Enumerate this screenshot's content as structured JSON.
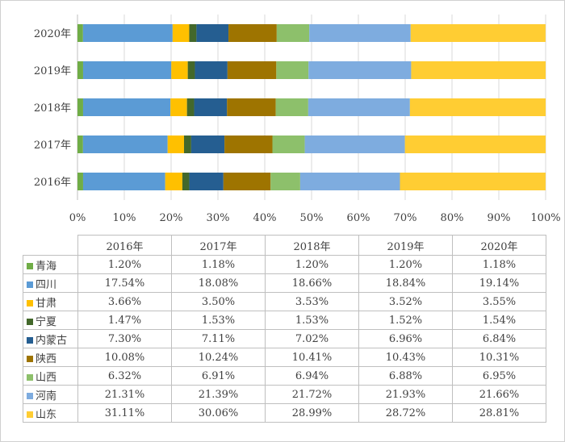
{
  "chart_data": {
    "type": "bar",
    "orientation": "horizontal",
    "stacked": "percent",
    "categories": [
      "2016年",
      "2017年",
      "2018年",
      "2019年",
      "2020年"
    ],
    "x_ticks": [
      "0%",
      "10%",
      "20%",
      "30%",
      "40%",
      "50%",
      "60%",
      "70%",
      "80%",
      "90%",
      "100%"
    ],
    "xlim": [
      0,
      100
    ],
    "grid": true,
    "legend": "data-table-below",
    "series": [
      {
        "name": "青海",
        "color": "#70ad47",
        "values": [
          1.2,
          1.18,
          1.2,
          1.2,
          1.18
        ],
        "labels": [
          "1.20%",
          "1.18%",
          "1.20%",
          "1.20%",
          "1.18%"
        ]
      },
      {
        "name": "四川",
        "color": "#5b9bd5",
        "values": [
          17.54,
          18.08,
          18.66,
          18.84,
          19.14
        ],
        "labels": [
          "17.54%",
          "18.08%",
          "18.66%",
          "18.84%",
          "19.14%"
        ]
      },
      {
        "name": "甘肃",
        "color": "#ffc000",
        "values": [
          3.66,
          3.5,
          3.53,
          3.52,
          3.55
        ],
        "labels": [
          "3.66%",
          "3.50%",
          "3.53%",
          "3.52%",
          "3.55%"
        ]
      },
      {
        "name": "宁夏",
        "color": "#43682b",
        "values": [
          1.47,
          1.53,
          1.53,
          1.52,
          1.54
        ],
        "labels": [
          "1.47%",
          "1.53%",
          "1.53%",
          "1.52%",
          "1.54%"
        ]
      },
      {
        "name": "内蒙古",
        "color": "#255e91",
        "values": [
          7.3,
          7.11,
          7.02,
          6.96,
          6.84
        ],
        "labels": [
          "7.30%",
          "7.11%",
          "7.02%",
          "6.96%",
          "6.84%"
        ]
      },
      {
        "name": "陕西",
        "color": "#9e7400",
        "values": [
          10.08,
          10.24,
          10.41,
          10.43,
          10.31
        ],
        "labels": [
          "10.08%",
          "10.24%",
          "10.41%",
          "10.43%",
          "10.31%"
        ]
      },
      {
        "name": "山西",
        "color": "#8dc06b",
        "values": [
          6.32,
          6.91,
          6.94,
          6.88,
          6.95
        ],
        "labels": [
          "6.32%",
          "6.91%",
          "6.94%",
          "6.88%",
          "6.95%"
        ]
      },
      {
        "name": "河南",
        "color": "#7eacdf",
        "values": [
          21.31,
          21.39,
          21.72,
          21.93,
          21.66
        ],
        "labels": [
          "21.31%",
          "21.39%",
          "21.72%",
          "21.93%",
          "21.66%"
        ]
      },
      {
        "name": "山东",
        "color": "#ffcd33",
        "values": [
          31.11,
          30.06,
          28.99,
          28.72,
          28.81
        ],
        "labels": [
          "31.11%",
          "30.06%",
          "28.99%",
          "28.72%",
          "28.81%"
        ]
      }
    ]
  }
}
